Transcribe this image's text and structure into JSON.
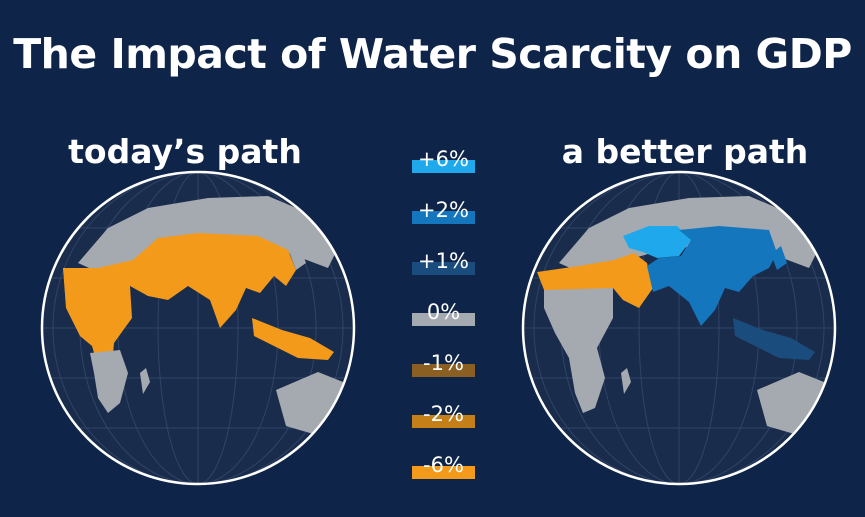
{
  "title": "The Impact of Water Scarcity on GDP",
  "maps": {
    "left": {
      "title": "today’s path"
    },
    "right": {
      "title": "a better path"
    }
  },
  "legend": [
    {
      "label": "+6%",
      "color": "#1fa9ec"
    },
    {
      "label": "+2%",
      "color": "#1477bd"
    },
    {
      "label": "+1%",
      "color": "#1a4c7d"
    },
    {
      "label": "0%",
      "color": "#a5a9b0"
    },
    {
      "label": "-1%",
      "color": "#8b5e22"
    },
    {
      "label": "-2%",
      "color": "#c57f18"
    },
    {
      "label": "-6%",
      "color": "#f39a1b"
    }
  ],
  "colors": {
    "background": "#0e2448",
    "globe_fill": "#1a2c4c",
    "globe_outline": "#ffffff",
    "graticule": "#2f4468"
  }
}
